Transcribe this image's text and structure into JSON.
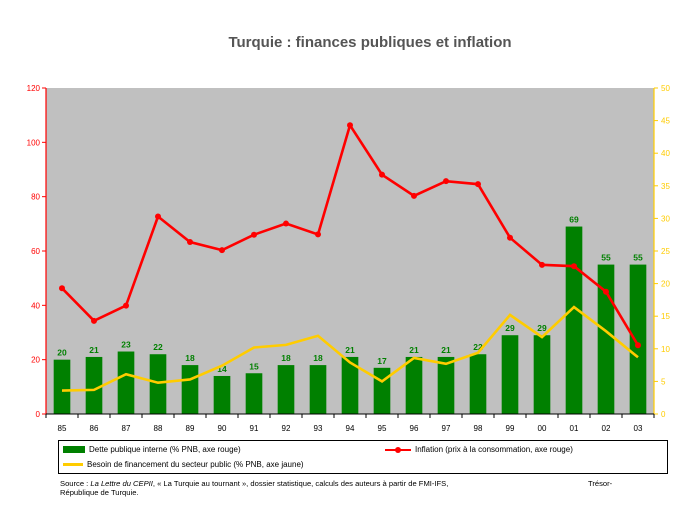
{
  "title": "Turquie : finances publiques et inflation",
  "chart_data": {
    "type": "bar",
    "categories": [
      "85",
      "86",
      "87",
      "88",
      "89",
      "90",
      "91",
      "92",
      "93",
      "94",
      "95",
      "96",
      "97",
      "98",
      "99",
      "00",
      "01",
      "02",
      "03"
    ],
    "left_axis": {
      "ylim": [
        0,
        120
      ],
      "ticks": [
        "0",
        "20",
        "40",
        "60",
        "80",
        "100",
        "120"
      ],
      "color": "#ff0000"
    },
    "right_axis": {
      "ylim": [
        0,
        50
      ],
      "ticks": [
        "0",
        "5",
        "10",
        "15",
        "20",
        "25",
        "30",
        "35",
        "40",
        "45",
        "50"
      ],
      "color": "#ffcc00"
    },
    "plot_background": "#c0c0c0",
    "series": [
      {
        "name": "Dette publique interne (% PNB, axe rouge)",
        "type": "bar",
        "axis": "left",
        "color": "#008000",
        "values": [
          20,
          21,
          23,
          22,
          18,
          14,
          15,
          18,
          18,
          21,
          17,
          21,
          21,
          22,
          29,
          29,
          69,
          55,
          55
        ],
        "labels": [
          "20",
          "21",
          "23",
          "22",
          "18",
          "14",
          "15",
          "18",
          "18",
          "21",
          "17",
          "21",
          "21",
          "22",
          "29",
          "29",
          "69",
          "55",
          "55"
        ]
      },
      {
        "name": "Inflation (prix à la consommation, axe rouge)",
        "type": "line",
        "axis": "left",
        "color": "#ff0000",
        "markers": true,
        "values": [
          46.3,
          34.3,
          39.9,
          72.7,
          63.3,
          60.3,
          66.0,
          70.1,
          66.1,
          106.3,
          88.1,
          80.3,
          85.7,
          84.6,
          64.9,
          54.9,
          54.4,
          45.0,
          25.3
        ]
      },
      {
        "name": "Besoin de financement du secteur public (% PNB, axe jaune)",
        "type": "line",
        "axis": "right",
        "color": "#ffcc00",
        "markers": false,
        "values": [
          3.6,
          3.7,
          6.1,
          4.8,
          5.3,
          7.4,
          10.2,
          10.6,
          12.0,
          7.9,
          5.0,
          8.6,
          7.7,
          9.4,
          15.2,
          11.8,
          16.4,
          12.7,
          8.7
        ]
      }
    ]
  },
  "legend": {
    "bar_label": "Dette publique interne (% PNB, axe rouge)",
    "red_label": "Inflation (prix à la consommation, axe rouge)",
    "yellow_label": "Besoin de financement du secteur public (% PNB, axe jaune)"
  },
  "source": {
    "prefix": "Source : ",
    "journal": "La Lettre du CEPII",
    "rest": ", « La Turquie au  tournant », dossier statistique, calculs des auteurs à partir de FMI-IFS,",
    "right": "Trésor-",
    "line2": "République de Turquie."
  }
}
